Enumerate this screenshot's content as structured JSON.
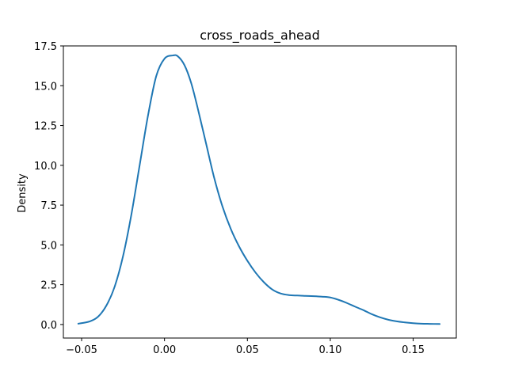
{
  "chart_data": {
    "type": "line",
    "title": "cross_roads_ahead",
    "xlabel": "",
    "ylabel": "Density",
    "xlim": [
      -0.061,
      0.176
    ],
    "ylim": [
      -0.85,
      17.5
    ],
    "xticks": [
      -0.05,
      0.0,
      0.05,
      0.1,
      0.15
    ],
    "xtick_labels": [
      "−0.05",
      "0.00",
      "0.05",
      "0.10",
      "0.15"
    ],
    "yticks": [
      0.0,
      2.5,
      5.0,
      7.5,
      10.0,
      12.5,
      15.0,
      17.5
    ],
    "ytick_labels": [
      "0.0",
      "2.5",
      "5.0",
      "7.5",
      "10.0",
      "12.5",
      "15.0",
      "17.5"
    ],
    "grid": false,
    "series": [
      {
        "color": "#1f77b4",
        "x": [
          -0.052,
          -0.045,
          -0.04,
          -0.035,
          -0.03,
          -0.025,
          -0.02,
          -0.015,
          -0.01,
          -0.005,
          0.0,
          0.005,
          0.008,
          0.012,
          0.016,
          0.02,
          0.025,
          0.03,
          0.035,
          0.04,
          0.045,
          0.05,
          0.055,
          0.06,
          0.065,
          0.07,
          0.075,
          0.08,
          0.085,
          0.09,
          0.095,
          0.1,
          0.105,
          0.11,
          0.115,
          0.12,
          0.125,
          0.13,
          0.135,
          0.14,
          0.145,
          0.15,
          0.155,
          0.16,
          0.166
        ],
        "y": [
          0.05,
          0.2,
          0.5,
          1.2,
          2.4,
          4.3,
          6.9,
          10.0,
          13.1,
          15.6,
          16.7,
          16.9,
          16.85,
          16.3,
          15.2,
          13.6,
          11.4,
          9.2,
          7.4,
          6.0,
          4.9,
          4.0,
          3.25,
          2.65,
          2.2,
          1.95,
          1.85,
          1.82,
          1.8,
          1.78,
          1.75,
          1.7,
          1.55,
          1.35,
          1.12,
          0.9,
          0.65,
          0.45,
          0.3,
          0.2,
          0.13,
          0.08,
          0.05,
          0.04,
          0.03
        ]
      }
    ]
  }
}
